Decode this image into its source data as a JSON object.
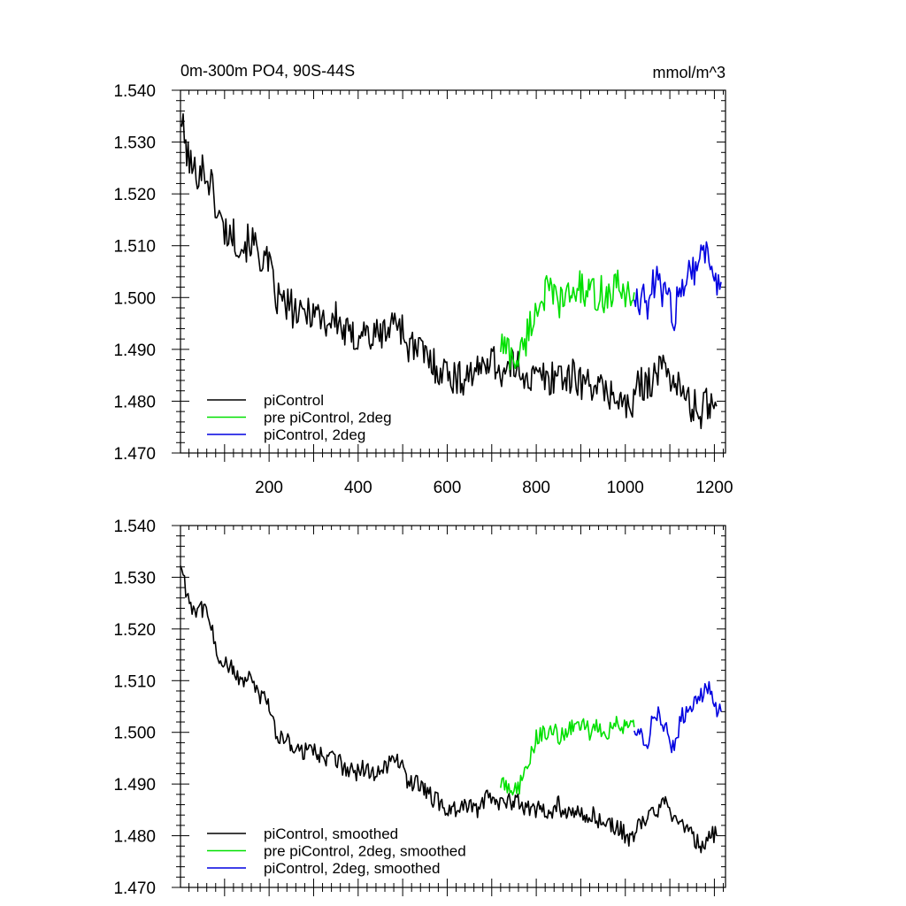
{
  "chart_data": [
    {
      "type": "line",
      "title": "0m-300m PO4, 90S-44S",
      "units": "mmol/m^3",
      "xlim": [
        1,
        1225
      ],
      "ylim": [
        1.47,
        1.54
      ],
      "x_ticks": [
        200,
        400,
        600,
        800,
        1000,
        1200
      ],
      "x_tick_labels": [
        "200",
        "400",
        "600",
        "800",
        "1000",
        "1200"
      ],
      "y_ticks": [
        1.47,
        1.48,
        1.49,
        1.5,
        1.51,
        1.52,
        1.53,
        1.54
      ],
      "y_tick_labels": [
        "1.470",
        "1.480",
        "1.490",
        "1.500",
        "1.510",
        "1.520",
        "1.530",
        "1.540"
      ],
      "grid": false,
      "legend_position": "bottom-left",
      "series": [
        {
          "name": "piControl",
          "color": "#000000",
          "x": [
            1,
            15,
            30,
            50,
            70,
            85,
            100,
            120,
            140,
            160,
            180,
            200,
            215,
            230,
            250,
            270,
            290,
            310,
            330,
            350,
            370,
            390,
            410,
            430,
            450,
            470,
            490,
            510,
            530,
            550,
            570,
            590,
            610,
            630,
            650,
            670,
            690,
            710,
            730,
            750,
            770,
            790,
            810,
            830,
            850,
            870,
            890,
            910,
            930,
            950,
            970,
            990,
            1010,
            1030,
            1050,
            1070,
            1090,
            1110,
            1130,
            1150,
            1170,
            1190,
            1205
          ],
          "y": [
            1.535,
            1.528,
            1.524,
            1.525,
            1.522,
            1.516,
            1.513,
            1.512,
            1.51,
            1.511,
            1.508,
            1.506,
            1.5,
            1.499,
            1.498,
            1.496,
            1.498,
            1.497,
            1.495,
            1.496,
            1.493,
            1.492,
            1.494,
            1.492,
            1.493,
            1.494,
            1.496,
            1.491,
            1.49,
            1.489,
            1.487,
            1.486,
            1.485,
            1.484,
            1.486,
            1.485,
            1.489,
            1.487,
            1.485,
            1.487,
            1.486,
            1.484,
            1.485,
            1.484,
            1.486,
            1.484,
            1.485,
            1.483,
            1.484,
            1.481,
            1.482,
            1.48,
            1.478,
            1.483,
            1.484,
            1.485,
            1.487,
            1.484,
            1.481,
            1.479,
            1.478,
            1.48,
            1.479
          ]
        },
        {
          "name": "pre piControl, 2deg",
          "color": "#00e000",
          "x": [
            720,
            735,
            750,
            765,
            780,
            800,
            820,
            840,
            860,
            880,
            900,
            920,
            940,
            960,
            980,
            1000,
            1020
          ],
          "y": [
            1.491,
            1.49,
            1.488,
            1.489,
            1.493,
            1.498,
            1.501,
            1.5,
            1.499,
            1.501,
            1.502,
            1.5,
            1.501,
            1.5,
            1.502,
            1.501,
            1.501
          ]
        },
        {
          "name": "piControl, 2deg",
          "color": "#0000e0",
          "x": [
            1020,
            1035,
            1050,
            1065,
            1080,
            1095,
            1110,
            1125,
            1140,
            1155,
            1170,
            1185,
            1200,
            1215
          ],
          "y": [
            1.501,
            1.5,
            1.498,
            1.503,
            1.502,
            1.5,
            1.496,
            1.503,
            1.505,
            1.506,
            1.508,
            1.509,
            1.504,
            1.503
          ]
        }
      ]
    },
    {
      "type": "line",
      "xlim": [
        1,
        1225
      ],
      "ylim": [
        1.47,
        1.54
      ],
      "y_ticks": [
        1.47,
        1.48,
        1.49,
        1.5,
        1.51,
        1.52,
        1.53,
        1.54
      ],
      "y_tick_labels": [
        "1.470",
        "1.480",
        "1.490",
        "1.500",
        "1.510",
        "1.520",
        "1.530",
        "1.540"
      ],
      "grid": false,
      "legend_position": "bottom-left",
      "series": [
        {
          "name": "piControl, smoothed",
          "color": "#000000",
          "x": [
            1,
            15,
            30,
            50,
            70,
            85,
            100,
            120,
            140,
            160,
            180,
            200,
            215,
            230,
            250,
            270,
            290,
            310,
            330,
            350,
            370,
            390,
            410,
            430,
            450,
            470,
            490,
            510,
            530,
            550,
            570,
            590,
            610,
            630,
            650,
            670,
            690,
            710,
            730,
            750,
            770,
            790,
            810,
            830,
            850,
            870,
            890,
            910,
            930,
            950,
            970,
            990,
            1010,
            1030,
            1050,
            1070,
            1090,
            1110,
            1130,
            1150,
            1170,
            1190,
            1205
          ],
          "y": [
            1.533,
            1.527,
            1.524,
            1.524,
            1.521,
            1.515,
            1.513,
            1.512,
            1.51,
            1.51,
            1.507,
            1.505,
            1.5,
            1.499,
            1.498,
            1.496,
            1.497,
            1.496,
            1.495,
            1.495,
            1.493,
            1.492,
            1.493,
            1.492,
            1.493,
            1.494,
            1.495,
            1.491,
            1.49,
            1.489,
            1.487,
            1.486,
            1.485,
            1.485,
            1.486,
            1.485,
            1.488,
            1.487,
            1.486,
            1.487,
            1.486,
            1.485,
            1.485,
            1.484,
            1.486,
            1.484,
            1.485,
            1.484,
            1.484,
            1.482,
            1.482,
            1.481,
            1.479,
            1.482,
            1.484,
            1.485,
            1.486,
            1.484,
            1.482,
            1.48,
            1.478,
            1.48,
            1.48
          ]
        },
        {
          "name": "pre piControl, 2deg, smoothed",
          "color": "#00e000",
          "x": [
            720,
            735,
            750,
            765,
            780,
            800,
            820,
            840,
            860,
            880,
            900,
            920,
            940,
            960,
            980,
            1000,
            1020
          ],
          "y": [
            1.49,
            1.49,
            1.489,
            1.49,
            1.493,
            1.499,
            1.5,
            1.5,
            1.499,
            1.501,
            1.502,
            1.5,
            1.501,
            1.5,
            1.502,
            1.501,
            1.501
          ]
        },
        {
          "name": "piControl, 2deg, smoothed",
          "color": "#0000e0",
          "x": [
            1020,
            1035,
            1050,
            1065,
            1080,
            1095,
            1110,
            1125,
            1140,
            1155,
            1170,
            1185,
            1200,
            1215
          ],
          "y": [
            1.501,
            1.5,
            1.498,
            1.504,
            1.503,
            1.5,
            1.496,
            1.503,
            1.504,
            1.505,
            1.507,
            1.509,
            1.505,
            1.504
          ]
        }
      ]
    }
  ]
}
